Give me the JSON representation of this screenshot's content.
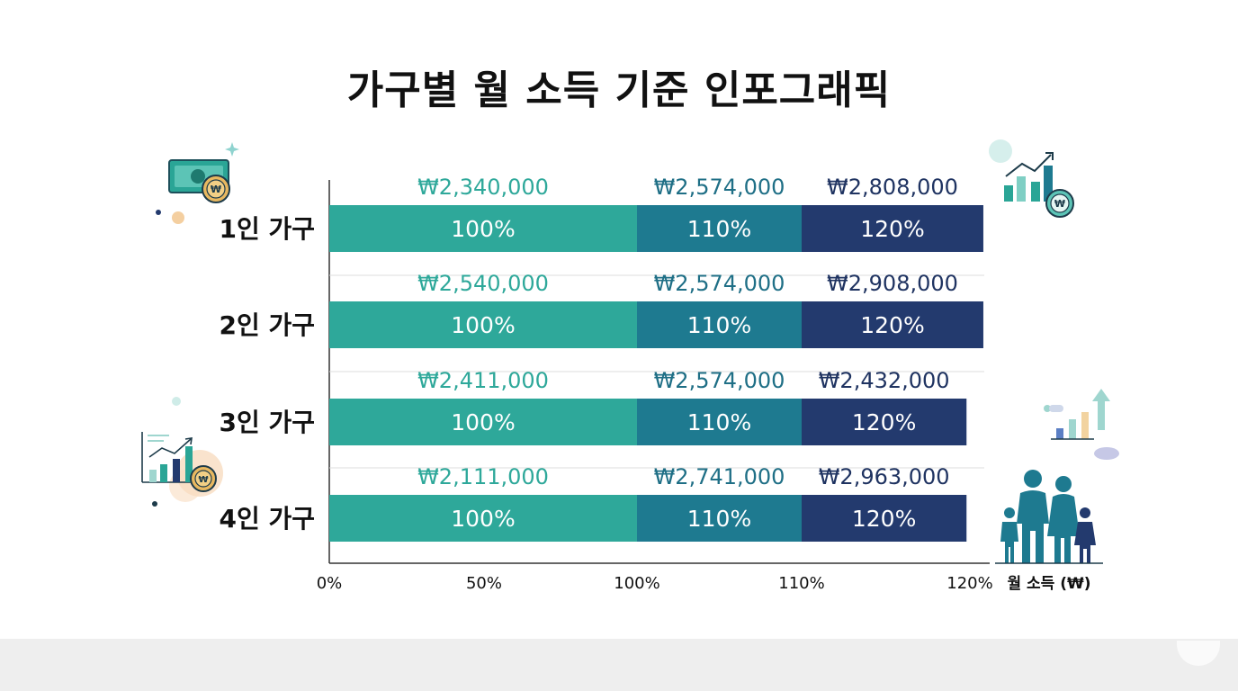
{
  "title": "가구별 월 소득 기준 인포그래픽",
  "colors": {
    "seg_100": "#2ea89a",
    "seg_110": "#1e7a90",
    "seg_120": "#233a6e",
    "label_100": "#2ea89a",
    "label_110": "#1f6f86",
    "label_120": "#1f3361"
  },
  "chart_data": {
    "type": "bar",
    "orientation": "horizontal",
    "stacked": true,
    "categories": [
      "1인 가구",
      "2인 가구",
      "3인 가구",
      "4인 가구"
    ],
    "x_ticks": [
      "0%",
      "50%",
      "100%",
      "110%",
      "120%"
    ],
    "xlabel": "월 소득 (₩)",
    "segments": [
      "100%",
      "110%",
      "120%"
    ],
    "income_labels": [
      [
        "₩2,340,000",
        "₩2,574,000",
        "₩2,808,000"
      ],
      [
        "₩2,540,000",
        "₩2,574,000",
        "₩2,908,000"
      ],
      [
        "₩2,411,000",
        "₩2,574,000",
        "₩2,432,000"
      ],
      [
        "₩2,111,000",
        "₩2,741,000",
        "₩2,963,000"
      ]
    ],
    "bar_end_percent": [
      120.8,
      120.8,
      119.8,
      119.8
    ]
  },
  "icons": {
    "top_left": "banknote-coin-icon",
    "top_right": "growth-chart-coin-icon",
    "mid_left": "report-chart-coin-icon",
    "mid_right": "rising-bars-arrow-icon",
    "bottom_right": "family-icon",
    "coin_symbol": "₩"
  }
}
